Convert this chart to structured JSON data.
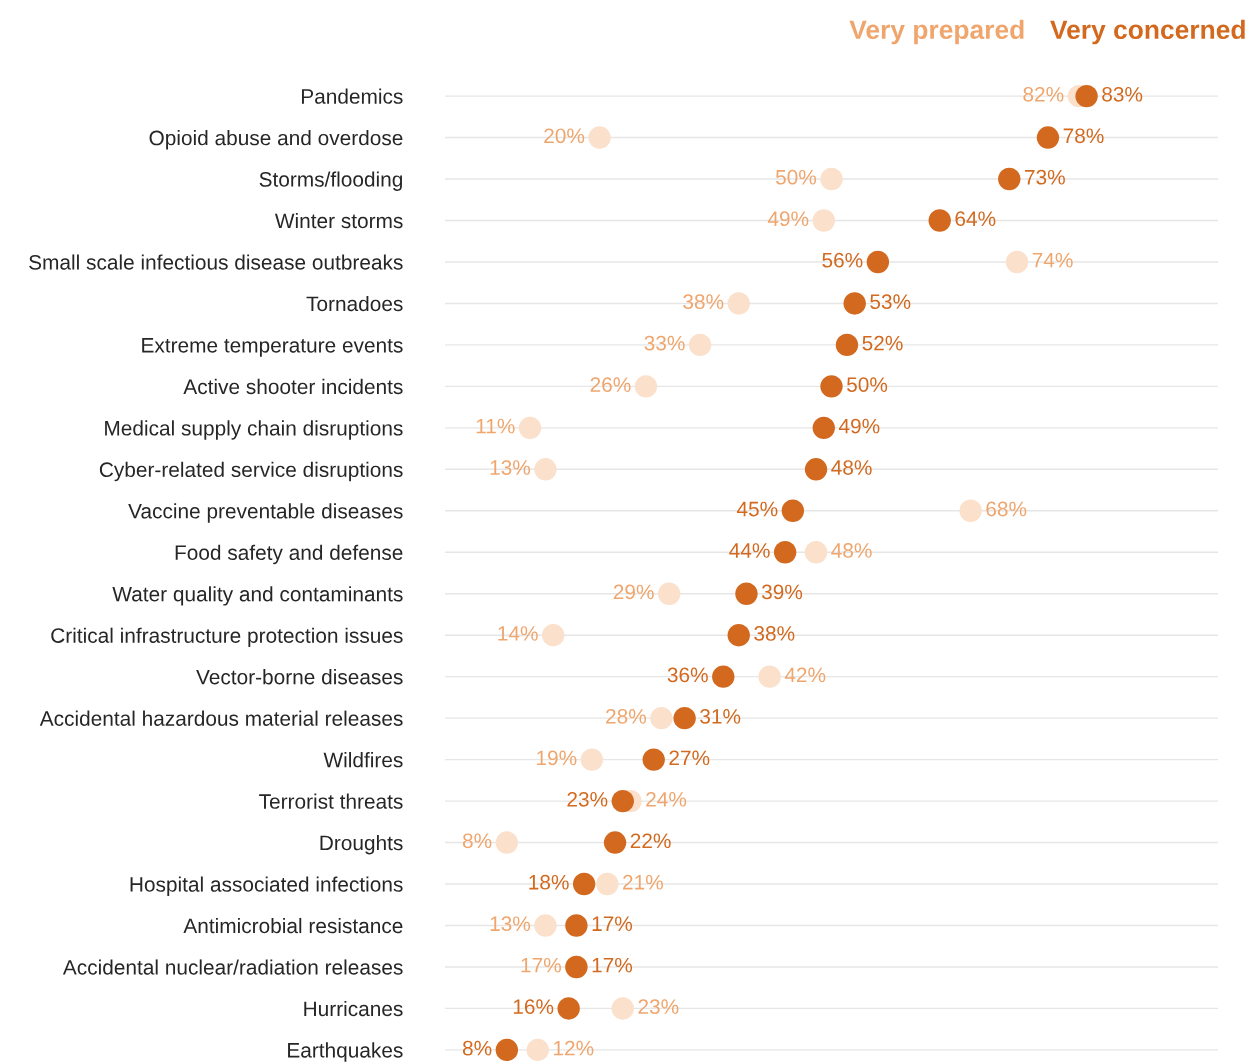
{
  "chart_data": {
    "type": "scatter",
    "orientation": "horizontal",
    "marker": "circle",
    "grid": "y",
    "tick_labels": "y",
    "xlim": [
      0,
      100
    ],
    "categories": [
      "Pandemics",
      "Opioid abuse and overdose",
      "Storms/flooding",
      "Winter storms",
      "Small scale infectious disease outbreaks",
      "Tornadoes",
      "Extreme temperature events",
      "Active shooter incidents",
      "Medical supply chain disruptions",
      "Cyber-related service disruptions",
      "Vaccine preventable diseases",
      "Food safety and defense",
      "Water quality and contaminants",
      "Critical infrastructure protection issues",
      "Vector-borne diseases",
      "Accidental hazardous material releases",
      "Wildfires",
      "Terrorist threats",
      "Droughts",
      "Hospital associated infections",
      "Antimicrobial resistance",
      "Accidental nuclear/radiation releases",
      "Hurricanes",
      "Earthquakes"
    ],
    "series": [
      {
        "name": "Very prepared",
        "color": "#fbe0cb",
        "values": [
          82,
          20,
          50,
          49,
          74,
          38,
          33,
          26,
          11,
          13,
          68,
          48,
          29,
          14,
          42,
          28,
          19,
          24,
          8,
          21,
          13,
          17,
          23,
          12
        ],
        "value_labels": [
          "82%",
          "20%",
          "50%",
          "49%",
          "74%",
          "38%",
          "33%",
          "26%",
          "11%",
          "13%",
          "68%",
          "48%",
          "29%",
          "14%",
          "42%",
          "28%",
          "19%",
          "24%",
          "8%",
          "21%",
          "13%",
          "17%",
          "23%",
          "12%"
        ]
      },
      {
        "name": "Very concerned",
        "color": "#d2691e",
        "values": [
          83,
          78,
          73,
          64,
          56,
          53,
          52,
          50,
          49,
          48,
          45,
          44,
          39,
          38,
          36,
          31,
          27,
          23,
          22,
          18,
          17,
          17,
          16,
          8
        ],
        "value_labels": [
          "83%",
          "78%",
          "73%",
          "64%",
          "56%",
          "53%",
          "52%",
          "50%",
          "49%",
          "48%",
          "45%",
          "44%",
          "39%",
          "38%",
          "36%",
          "31%",
          "27%",
          "23%",
          "22%",
          "18%",
          "17%",
          "17%",
          "16%",
          "8%"
        ]
      }
    ]
  }
}
